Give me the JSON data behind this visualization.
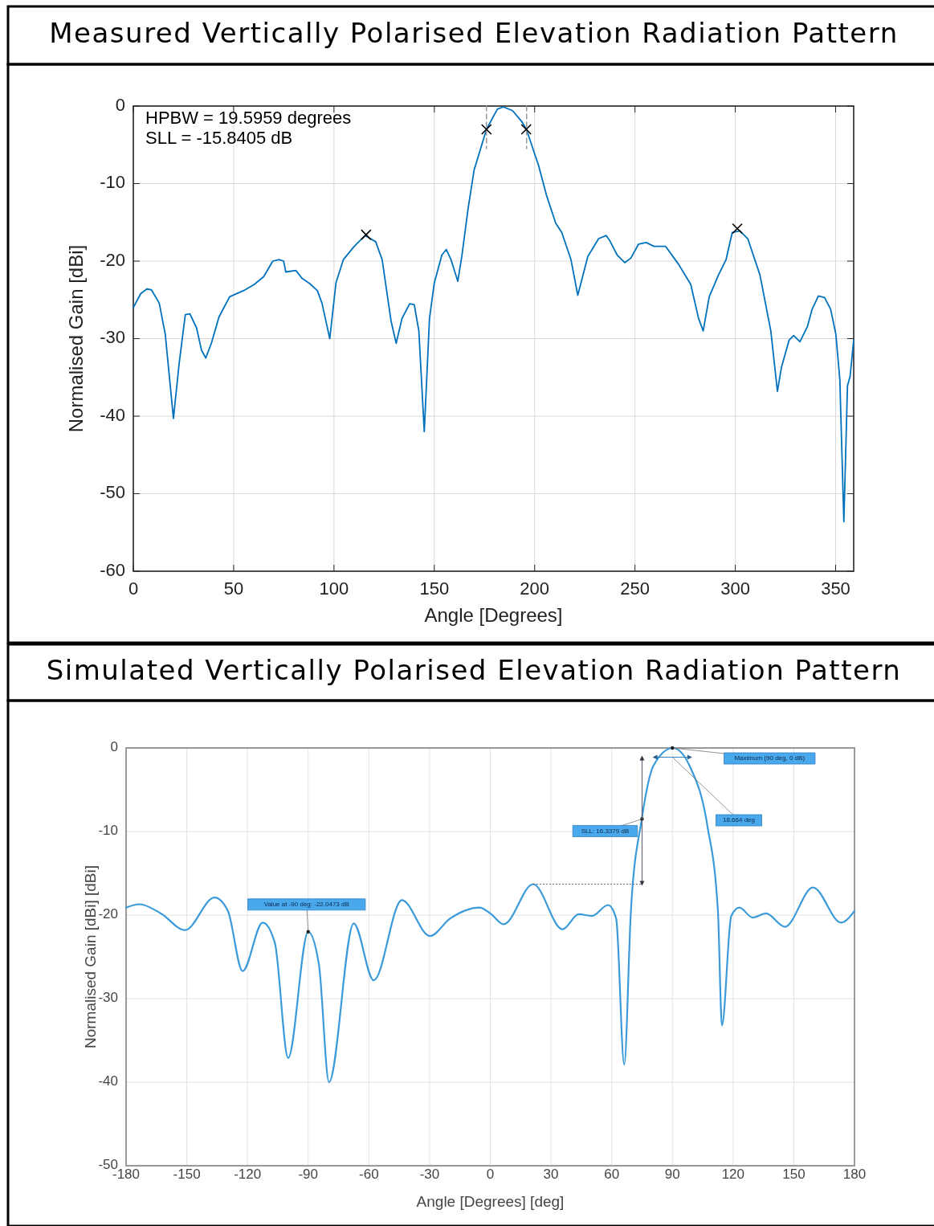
{
  "chart_data": [
    {
      "type": "line",
      "title": "Measured Vertically Polarised Elevation Radiation Pattern",
      "xlabel": "Angle [Degrees]",
      "ylabel": "Normalised Gain [dBi]",
      "xlim": [
        0,
        359
      ],
      "ylim": [
        -60,
        0
      ],
      "xticks": [
        0,
        50,
        100,
        150,
        200,
        250,
        300,
        350
      ],
      "yticks": [
        -60,
        -50,
        -40,
        -30,
        -20,
        -10,
        0
      ],
      "grid": true,
      "annotations": [
        "HPBW = 19.5959 degrees",
        "SLL = -15.8405 dB"
      ],
      "series": [
        {
          "color": "#0072bd",
          "x": [
            0,
            3.7,
            6.7,
            9,
            12.9,
            15.9,
            20,
            22.8,
            25.9,
            28.2,
            31.5,
            34,
            36.1,
            38.9,
            42.7,
            48,
            55,
            60.3,
            65,
            69.5,
            72.6,
            74.9,
            76,
            81,
            84,
            87.9,
            91.7,
            94,
            97.9,
            101,
            104.7,
            110.1,
            115.5,
            120.8,
            124,
            128.5,
            131,
            133.9,
            137.7,
            140,
            142.3,
            145,
            147.6,
            150,
            153.8,
            156,
            158.3,
            161.7,
            163.7,
            166.8,
            169.8,
            176,
            181.4,
            184.4,
            189,
            193.6,
            195.9,
            202,
            205.9,
            210.5,
            213.5,
            218.1,
            221.5,
            226.5,
            231.9,
            235.7,
            237.3,
            241.1,
            244.9,
            248,
            251.8,
            255.6,
            259.5,
            265.3,
            271.7,
            277.8,
            281.7,
            284,
            287,
            291.6,
            295.4,
            298.5,
            302.3,
            306.2,
            312.3,
            317.7,
            321,
            323,
            326.8,
            329.1,
            332.2,
            336,
            338.3,
            341.4,
            344.5,
            347.5,
            350.1,
            352.1,
            354.1,
            355.9,
            357.2,
            359
          ],
          "values": [
            -26,
            -24.2,
            -23.6,
            -23.7,
            -25.4,
            -29.4,
            -40.3,
            -33.3,
            -26.9,
            -26.8,
            -28.6,
            -31.5,
            -32.5,
            -30.6,
            -27.2,
            -24.6,
            -23.8,
            -23,
            -22,
            -20,
            -19.8,
            -20,
            -21.4,
            -21.2,
            -22.2,
            -22.9,
            -23.8,
            -25.4,
            -30,
            -22.8,
            -19.8,
            -18.1,
            -16.7,
            -17.5,
            -19.8,
            -27.8,
            -30.6,
            -27.4,
            -25.5,
            -25.6,
            -29,
            -42,
            -27.4,
            -22.8,
            -19.2,
            -18.5,
            -19.8,
            -22.6,
            -19.4,
            -13.3,
            -8.3,
            -3,
            -0.4,
            -0.1,
            -0.6,
            -2,
            -3,
            -7.7,
            -11.5,
            -15.1,
            -16.3,
            -19.8,
            -24.4,
            -19.4,
            -17.1,
            -16.7,
            -17.3,
            -19.2,
            -20.2,
            -19.6,
            -17.8,
            -17.6,
            -18.1,
            -18.1,
            -20.4,
            -23,
            -27.4,
            -29,
            -24.6,
            -21.8,
            -19.8,
            -16.3,
            -16.1,
            -17.1,
            -21.8,
            -29,
            -36.8,
            -33.7,
            -30.2,
            -29.6,
            -30.4,
            -28.4,
            -26.2,
            -24.5,
            -24.7,
            -26.2,
            -29.4,
            -35.3,
            -53.6,
            -36.1,
            -34.9,
            -30.2
          ]
        },
        {
          "type": "line",
          "color": "#999999",
          "line_style": "dashed",
          "x": [
            176,
            176
          ],
          "values": [
            0,
            -5.5
          ]
        },
        {
          "type": "line",
          "color": "#999999",
          "line_style": "dashed",
          "x": [
            196,
            196
          ],
          "values": [
            0,
            -5.5
          ]
        },
        {
          "type": "scatter",
          "color": "#000000",
          "marker": "cross",
          "x": [
            176,
            195.8,
            116,
            301
          ],
          "values": [
            -3,
            -3,
            -16.6,
            -15.8
          ]
        }
      ]
    },
    {
      "type": "line",
      "title": "Simulated Vertically Polarised Elevation Radiation Pattern",
      "xlabel": "Angle [Degrees] [deg]",
      "ylabel": "Normalised Gain [dBi] [dBi]",
      "xlim": [
        -180,
        180
      ],
      "ylim": [
        -50,
        0
      ],
      "xticks": [
        -180,
        -150,
        -120,
        -90,
        -60,
        -30,
        0,
        30,
        60,
        90,
        120,
        150,
        180
      ],
      "yticks": [
        -50,
        -40,
        -30,
        -20,
        -10,
        0
      ],
      "grid": true,
      "annotations": [
        {
          "text": "Value at -90 deg: -22.0473 dB",
          "x": -90,
          "y": -22
        },
        {
          "text": "Maximum (90 deg, 0 dB)",
          "x": 90,
          "y": 0
        },
        {
          "text": "SLL: 16.3379 dB",
          "x": 75,
          "y": -8.5
        },
        "18.664 deg"
      ],
      "series": [
        {
          "color": "#3b9ad9",
          "x": [
            -180,
            -173.4,
            -162.8,
            -150.9,
            -136.3,
            -129.7,
            -122.4,
            -112.5,
            -106.5,
            -99.9,
            -90,
            -84.7,
            -79.7,
            -67.5,
            -57.6,
            -43.7,
            -29.8,
            -19.8,
            -5.3,
            0,
            6.6,
            21.2,
            35.7,
            43.7,
            50.3,
            58.2,
            62.2,
            66.2,
            69.5,
            74.8,
            80.7,
            90.2,
            99.2,
            107.2,
            112.5,
            114.5,
            119.1,
            123.1,
            129.7,
            136.3,
            145.6,
            159.5,
            173.4,
            180
          ],
          "values": [
            -19.1,
            -18.7,
            -19.8,
            -21.8,
            -17.9,
            -19.5,
            -26.7,
            -20.9,
            -23.3,
            -37.1,
            -22,
            -25.9,
            -40,
            -21,
            -27.8,
            -18.2,
            -22.5,
            -20.4,
            -19.1,
            -19.8,
            -21.1,
            -16.3,
            -21.7,
            -19.9,
            -20.1,
            -18.8,
            -20.4,
            -37.9,
            -19.5,
            -8.6,
            -2.1,
            0,
            -2.5,
            -9.2,
            -19.5,
            -33.2,
            -20.1,
            -19.1,
            -20.3,
            -19.8,
            -21.4,
            -16.7,
            -20.9,
            -19.5
          ]
        }
      ]
    }
  ]
}
